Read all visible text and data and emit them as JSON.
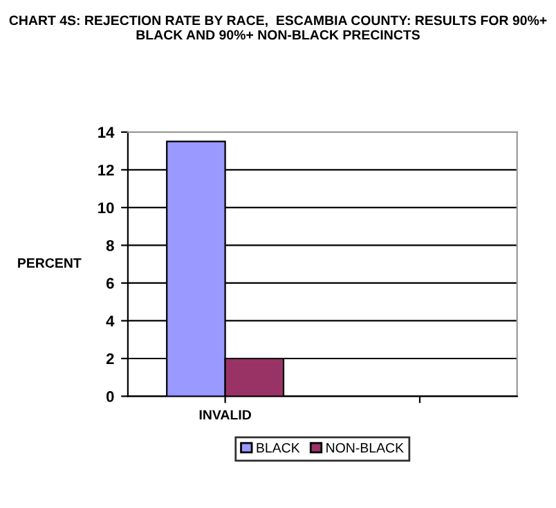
{
  "chart_data": {
    "type": "bar",
    "title": "CHART 4S: REJECTION RATE BY RACE,  ESCAMBIA COUNTY: RESULTS FOR 90%+ BLACK AND 90%+ NON-BLACK PRECINCTS",
    "ylabel": "PERCENT",
    "categories": [
      "INVALID",
      null
    ],
    "series": [
      {
        "name": "BLACK",
        "color": "#9999ff",
        "values": [
          13.5,
          null
        ]
      },
      {
        "name": "NON-BLACK",
        "color": "#993366",
        "values": [
          2.0,
          null
        ]
      }
    ],
    "ylim": [
      0,
      14
    ],
    "yticks": [
      0,
      2,
      4,
      6,
      8,
      10,
      12,
      14
    ],
    "grid": "y",
    "legend": "bottom"
  }
}
